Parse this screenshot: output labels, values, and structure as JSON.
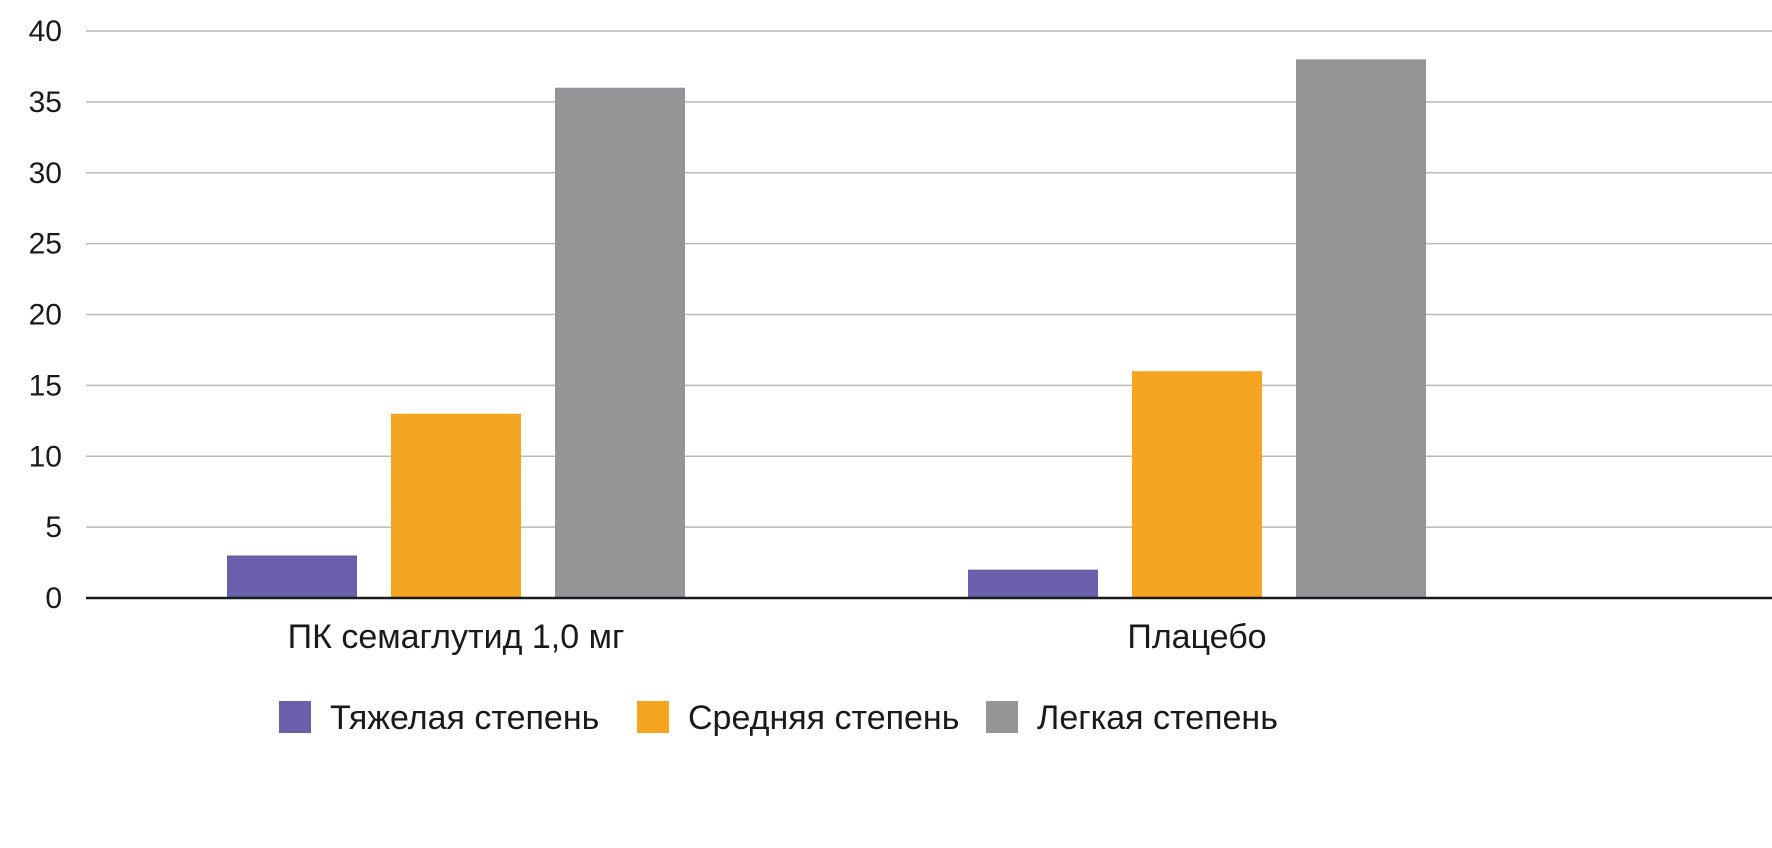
{
  "chart_data": {
    "type": "bar",
    "categories": [
      "ПК семаглутид 1,0 мг",
      "Плацебо"
    ],
    "series": [
      {
        "name": "Тяжелая степень",
        "values": [
          3,
          2
        ],
        "color": "#6a5fab"
      },
      {
        "name": "Средняя степень",
        "values": [
          13,
          16
        ],
        "color": "#f5a51f"
      },
      {
        "name": "Легкая степень",
        "values": [
          36,
          38
        ],
        "color": "#959598"
      }
    ],
    "yticks": [
      0,
      5,
      10,
      15,
      20,
      25,
      30,
      35,
      40
    ],
    "ylim": [
      0,
      40
    ],
    "grid": true,
    "legend_position": "bottom",
    "title": "",
    "xlabel": "",
    "ylabel": ""
  }
}
